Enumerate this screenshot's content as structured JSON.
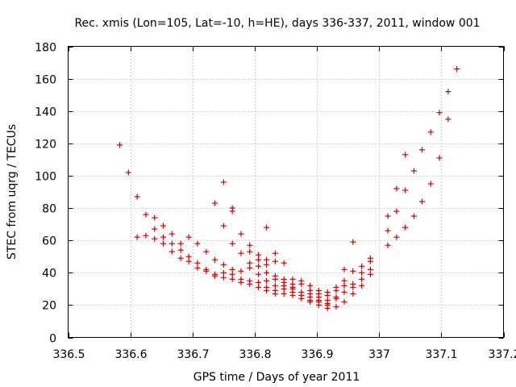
{
  "chart_data": {
    "type": "scatter",
    "title": "Rec. xmis (Lon=105, Lat=-10, h=HE), days 336-337, 2011, window 001",
    "xlabel": "GPS time / Days of year 2011",
    "ylabel": "STEC from uqrg / TECUs",
    "xlim": [
      336.5,
      337.2
    ],
    "ylim": [
      0,
      180
    ],
    "xticks": [
      336.5,
      336.6,
      336.7,
      336.8,
      336.9,
      337,
      337.1,
      337.2
    ],
    "xtick_labels": [
      "336.5",
      "336.6",
      "336.7",
      "336.8",
      "336.9",
      "337",
      "337.1",
      "337.2"
    ],
    "yticks": [
      0,
      20,
      40,
      60,
      80,
      100,
      120,
      140,
      160,
      180
    ],
    "ytick_labels": [
      "0",
      "20",
      "40",
      "60",
      "80",
      "100",
      "120",
      "140",
      "160",
      "180"
    ],
    "grid": true,
    "marker": "+",
    "color": "#cc0000",
    "series": [
      {
        "name": "STEC",
        "points": [
          [
            336.583,
            119
          ],
          [
            336.597,
            102
          ],
          [
            336.611,
            87
          ],
          [
            336.611,
            62
          ],
          [
            336.625,
            76
          ],
          [
            336.625,
            63
          ],
          [
            336.639,
            74
          ],
          [
            336.639,
            67
          ],
          [
            336.639,
            61
          ],
          [
            336.653,
            69
          ],
          [
            336.653,
            62
          ],
          [
            336.653,
            58
          ],
          [
            336.667,
            64
          ],
          [
            336.667,
            58
          ],
          [
            336.667,
            53
          ],
          [
            336.681,
            58
          ],
          [
            336.681,
            54
          ],
          [
            336.681,
            49
          ],
          [
            336.694,
            62
          ],
          [
            336.694,
            50
          ],
          [
            336.694,
            47
          ],
          [
            336.708,
            58
          ],
          [
            336.708,
            46
          ],
          [
            336.708,
            43
          ],
          [
            336.722,
            53
          ],
          [
            336.722,
            42
          ],
          [
            336.722,
            41
          ],
          [
            336.736,
            83
          ],
          [
            336.736,
            48
          ],
          [
            336.736,
            39
          ],
          [
            336.736,
            38
          ],
          [
            336.75,
            96
          ],
          [
            336.75,
            69
          ],
          [
            336.75,
            45
          ],
          [
            336.75,
            40
          ],
          [
            336.75,
            37
          ],
          [
            336.764,
            80
          ],
          [
            336.764,
            78
          ],
          [
            336.764,
            58
          ],
          [
            336.764,
            42
          ],
          [
            336.764,
            39
          ],
          [
            336.764,
            36
          ],
          [
            336.778,
            64
          ],
          [
            336.778,
            52
          ],
          [
            336.778,
            41
          ],
          [
            336.778,
            36
          ],
          [
            336.778,
            34
          ],
          [
            336.792,
            57
          ],
          [
            336.792,
            53
          ],
          [
            336.792,
            46
          ],
          [
            336.792,
            43
          ],
          [
            336.792,
            35
          ],
          [
            336.792,
            33
          ],
          [
            336.806,
            51
          ],
          [
            336.806,
            48
          ],
          [
            336.806,
            44
          ],
          [
            336.806,
            39
          ],
          [
            336.806,
            34
          ],
          [
            336.806,
            31
          ],
          [
            336.819,
            68
          ],
          [
            336.819,
            48
          ],
          [
            336.819,
            45
          ],
          [
            336.819,
            40
          ],
          [
            336.819,
            35
          ],
          [
            336.819,
            31
          ],
          [
            336.819,
            29
          ],
          [
            336.833,
            52
          ],
          [
            336.833,
            47
          ],
          [
            336.833,
            38
          ],
          [
            336.833,
            36
          ],
          [
            336.833,
            32
          ],
          [
            336.833,
            29
          ],
          [
            336.833,
            27
          ],
          [
            336.847,
            46
          ],
          [
            336.847,
            36
          ],
          [
            336.847,
            34
          ],
          [
            336.847,
            32
          ],
          [
            336.847,
            30
          ],
          [
            336.847,
            27
          ],
          [
            336.861,
            36
          ],
          [
            336.861,
            33
          ],
          [
            336.861,
            31
          ],
          [
            336.861,
            30
          ],
          [
            336.861,
            28
          ],
          [
            336.861,
            26
          ],
          [
            336.875,
            35
          ],
          [
            336.875,
            33
          ],
          [
            336.875,
            28
          ],
          [
            336.875,
            26
          ],
          [
            336.875,
            24
          ],
          [
            336.889,
            32
          ],
          [
            336.889,
            29
          ],
          [
            336.889,
            27
          ],
          [
            336.889,
            25
          ],
          [
            336.889,
            23
          ],
          [
            336.889,
            22
          ],
          [
            336.903,
            29
          ],
          [
            336.903,
            27
          ],
          [
            336.903,
            25
          ],
          [
            336.903,
            23
          ],
          [
            336.903,
            22
          ],
          [
            336.903,
            20
          ],
          [
            336.917,
            28
          ],
          [
            336.917,
            26
          ],
          [
            336.917,
            23
          ],
          [
            336.917,
            21
          ],
          [
            336.917,
            20
          ],
          [
            336.917,
            18
          ],
          [
            336.931,
            31
          ],
          [
            336.931,
            29
          ],
          [
            336.931,
            25
          ],
          [
            336.931,
            24
          ],
          [
            336.931,
            19
          ],
          [
            336.944,
            42
          ],
          [
            336.944,
            35
          ],
          [
            336.944,
            32
          ],
          [
            336.944,
            28
          ],
          [
            336.944,
            22
          ],
          [
            336.958,
            59
          ],
          [
            336.958,
            41
          ],
          [
            336.958,
            33
          ],
          [
            336.958,
            31
          ],
          [
            336.958,
            27
          ],
          [
            336.972,
            44
          ],
          [
            336.972,
            40
          ],
          [
            336.972,
            36
          ],
          [
            336.972,
            32
          ],
          [
            336.986,
            49
          ],
          [
            336.986,
            47
          ],
          [
            336.986,
            42
          ],
          [
            336.986,
            39
          ],
          [
            337.014,
            75
          ],
          [
            337.014,
            66
          ],
          [
            337.014,
            57
          ],
          [
            337.028,
            92
          ],
          [
            337.028,
            78
          ],
          [
            337.028,
            62
          ],
          [
            337.042,
            113
          ],
          [
            337.042,
            91
          ],
          [
            337.042,
            68
          ],
          [
            337.056,
            103
          ],
          [
            337.056,
            75
          ],
          [
            337.069,
            116
          ],
          [
            337.069,
            84
          ],
          [
            337.083,
            127
          ],
          [
            337.083,
            95
          ],
          [
            337.097,
            139
          ],
          [
            337.097,
            111
          ],
          [
            337.111,
            152
          ],
          [
            337.111,
            135
          ],
          [
            337.125,
            166
          ]
        ]
      }
    ]
  }
}
